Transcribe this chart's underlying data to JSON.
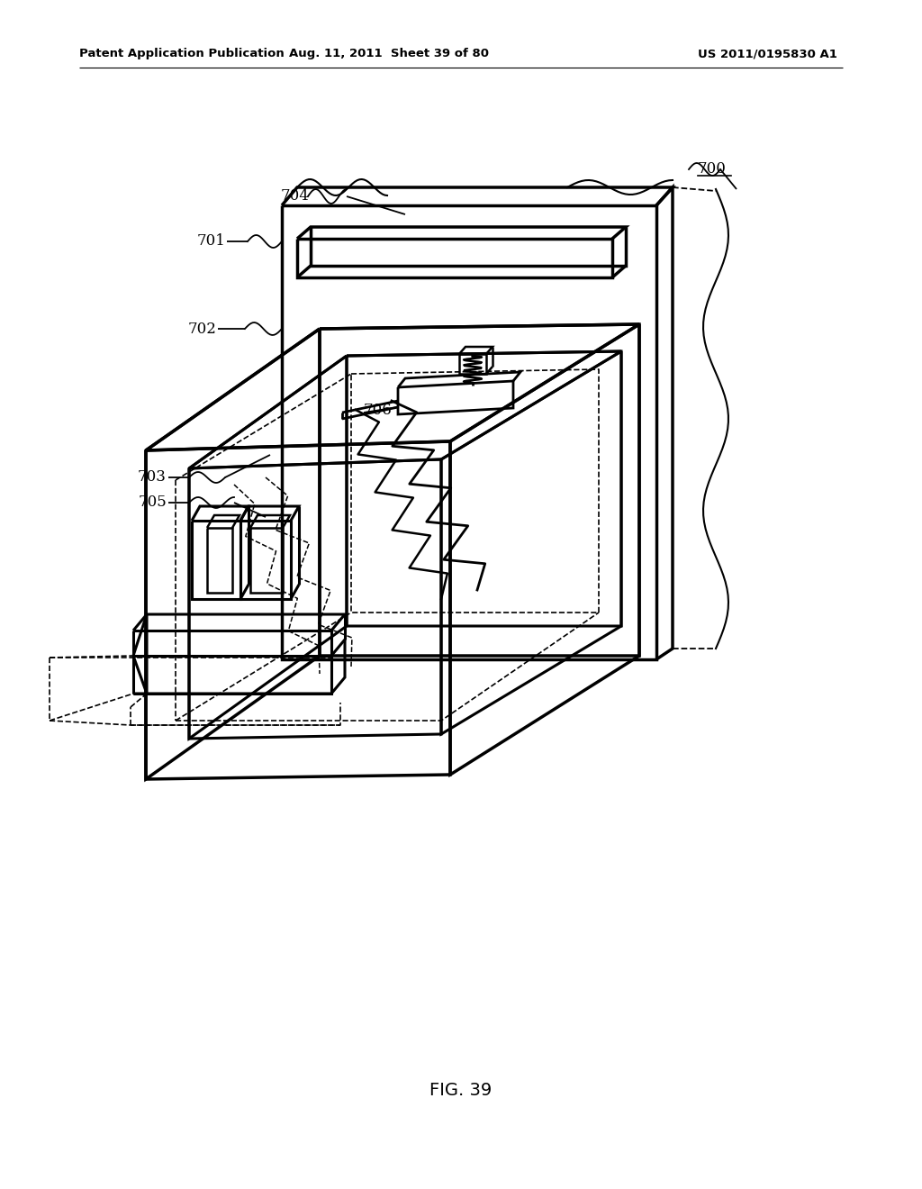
{
  "bg_color": "#ffffff",
  "header_left": "Patent Application Publication",
  "header_mid": "Aug. 11, 2011  Sheet 39 of 80",
  "header_right": "US 2011/0195830 A1",
  "caption": "FIG. 39"
}
